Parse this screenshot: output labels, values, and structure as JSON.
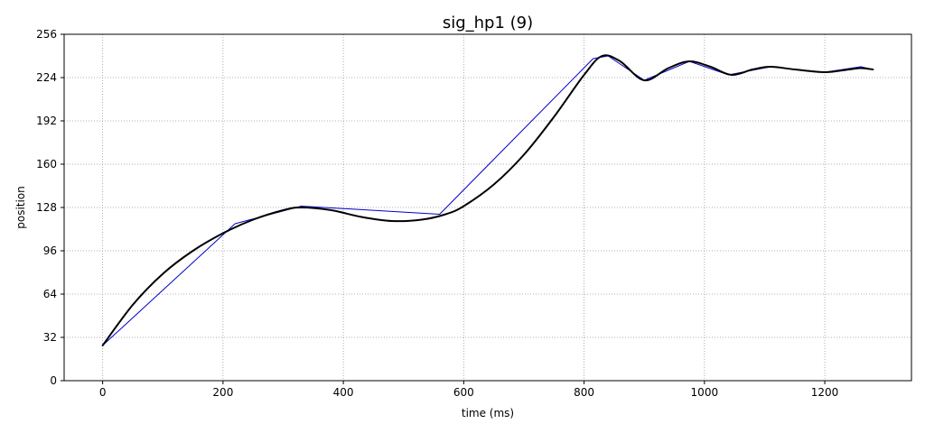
{
  "chart_data": {
    "type": "line",
    "title": "sig_hp1 (9)",
    "xlabel": "time (ms)",
    "ylabel": "position",
    "xlim": [
      -64,
      1344
    ],
    "ylim": [
      0,
      256
    ],
    "x_ticks": [
      0,
      200,
      400,
      600,
      800,
      1000,
      1200
    ],
    "y_ticks": [
      0,
      32,
      64,
      96,
      128,
      160,
      192,
      224,
      256
    ],
    "grid": true,
    "legend": "none",
    "series": [
      {
        "color": "#0000cc",
        "line_width": 1,
        "x": [
          0,
          220,
          330,
          560,
          815,
          840,
          900,
          975,
          1040,
          1110,
          1200,
          1260,
          1280
        ],
        "y": [
          26,
          116,
          129,
          123,
          238,
          240,
          222,
          236,
          226,
          232,
          228,
          232,
          230
        ]
      },
      {
        "color": "#000000",
        "line_width": 2,
        "x": [
          0,
          50,
          100,
          150,
          200,
          250,
          300,
          330,
          380,
          430,
          480,
          530,
          570,
          600,
          650,
          700,
          750,
          800,
          830,
          860,
          900,
          940,
          975,
          1010,
          1045,
          1080,
          1110,
          1150,
          1200,
          1240,
          1260,
          1280
        ],
        "y": [
          26,
          56,
          79,
          96,
          109,
          119,
          126,
          128,
          126,
          121,
          118,
          119,
          123,
          129,
          145,
          167,
          195,
          226,
          240,
          236,
          222,
          231,
          236,
          232,
          226,
          230,
          232,
          230,
          228,
          230,
          231,
          230
        ]
      }
    ]
  }
}
